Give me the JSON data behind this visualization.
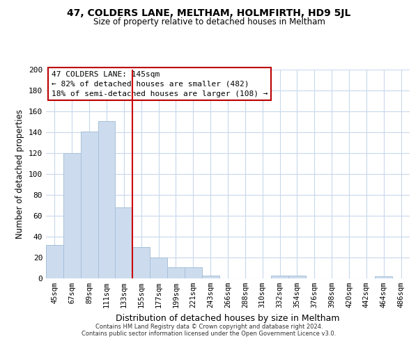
{
  "title": "47, COLDERS LANE, MELTHAM, HOLMFIRTH, HD9 5JL",
  "subtitle": "Size of property relative to detached houses in Meltham",
  "xlabel": "Distribution of detached houses by size in Meltham",
  "ylabel": "Number of detached properties",
  "bar_labels": [
    "45sqm",
    "67sqm",
    "89sqm",
    "111sqm",
    "133sqm",
    "155sqm",
    "177sqm",
    "199sqm",
    "221sqm",
    "243sqm",
    "266sqm",
    "288sqm",
    "310sqm",
    "332sqm",
    "354sqm",
    "376sqm",
    "398sqm",
    "420sqm",
    "442sqm",
    "464sqm",
    "486sqm"
  ],
  "bar_values": [
    32,
    120,
    141,
    151,
    68,
    30,
    20,
    11,
    11,
    3,
    0,
    0,
    0,
    3,
    3,
    0,
    0,
    0,
    0,
    2,
    0
  ],
  "bar_color": "#ccdcee",
  "bar_edge_color": "#a8c0d8",
  "vline_x_index": 4.5,
  "vline_color": "#cc0000",
  "ylim": [
    0,
    200
  ],
  "yticks": [
    0,
    20,
    40,
    60,
    80,
    100,
    120,
    140,
    160,
    180,
    200
  ],
  "annotation_title": "47 COLDERS LANE: 145sqm",
  "annotation_line1": "← 82% of detached houses are smaller (482)",
  "annotation_line2": "18% of semi-detached houses are larger (108) →",
  "footer_line1": "Contains HM Land Registry data © Crown copyright and database right 2024.",
  "footer_line2": "Contains public sector information licensed under the Open Government Licence v3.0.",
  "background_color": "#ffffff",
  "grid_color": "#c8d8ec"
}
